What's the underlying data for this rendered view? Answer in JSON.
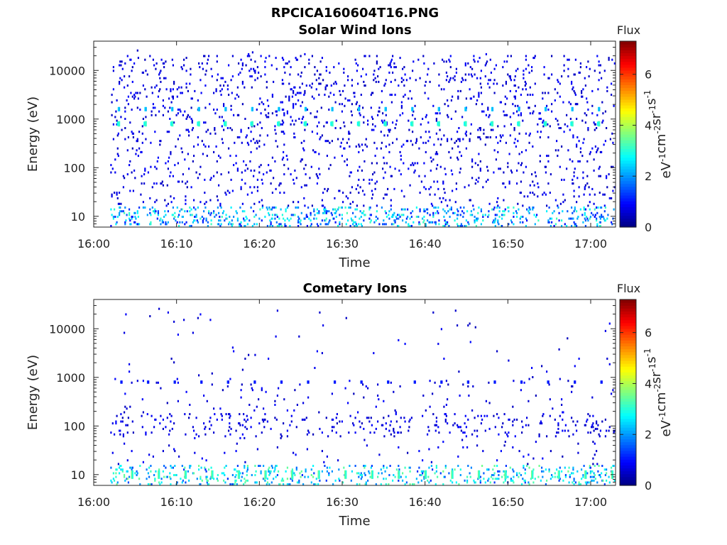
{
  "figure_title": "RPCICA160604T16.PNG",
  "chart_data": [
    {
      "type": "heatmap",
      "title": "Solar Wind Ions",
      "xlabel": "Time",
      "ylabel": "Energy (eV)",
      "x_ticks": [
        "16:00",
        "16:10",
        "16:20",
        "16:30",
        "16:40",
        "16:50",
        "17:00"
      ],
      "xlim": [
        "16:00",
        "17:03"
      ],
      "y_scale": "log",
      "y_ticks": [
        "10",
        "100",
        "1000",
        "10000"
      ],
      "ylim": [
        6,
        40000
      ],
      "colorbar": {
        "title": "Flux",
        "label": "eV-1cm-2sr-1s-1",
        "ticks": [
          "0",
          "2",
          "4",
          "6"
        ],
        "range": [
          0,
          7.3
        ],
        "colormap": "jet"
      },
      "features": [
        {
          "description": "periodic bursts near 800 eV every ~3.2 min",
          "energy_eV": 800,
          "flux": 3.5
        },
        {
          "description": "periodic bursts near 1600 eV",
          "energy_eV": 1600,
          "flux": 2.4
        },
        {
          "description": "low-energy bursts",
          "energy_eV_range": [
            7,
            13
          ],
          "flux_range": [
            1.5,
            3.2
          ]
        },
        {
          "description": "sparse background counts",
          "energy_eV_range": [
            10,
            30000
          ],
          "flux_range": [
            0.3,
            1.0
          ]
        }
      ]
    },
    {
      "type": "heatmap",
      "title": "Cometary Ions",
      "xlabel": "Time",
      "ylabel": "Energy (eV)",
      "x_ticks": [
        "16:00",
        "16:10",
        "16:20",
        "16:30",
        "16:40",
        "16:50",
        "17:00"
      ],
      "xlim": [
        "16:00",
        "17:03"
      ],
      "y_scale": "log",
      "y_ticks": [
        "10",
        "100",
        "1000",
        "10000"
      ],
      "ylim": [
        6,
        40000
      ],
      "colorbar": {
        "title": "Flux",
        "label": "eV-1cm-2sr-1s-1",
        "ticks": [
          "0",
          "2",
          "4",
          "6"
        ],
        "range": [
          0,
          7.3
        ],
        "colormap": "jet"
      },
      "features": [
        {
          "description": "weak bursts near 800 eV",
          "energy_eV": 800,
          "flux": 1.2
        },
        {
          "description": "low-energy cometary ion bursts",
          "energy_eV_range": [
            7,
            13
          ],
          "flux_range": [
            2.0,
            4.2
          ]
        },
        {
          "description": "sparse counts 60-150 eV",
          "energy_eV_range": [
            60,
            150
          ],
          "flux_range": [
            0.3,
            0.8
          ]
        }
      ]
    }
  ]
}
